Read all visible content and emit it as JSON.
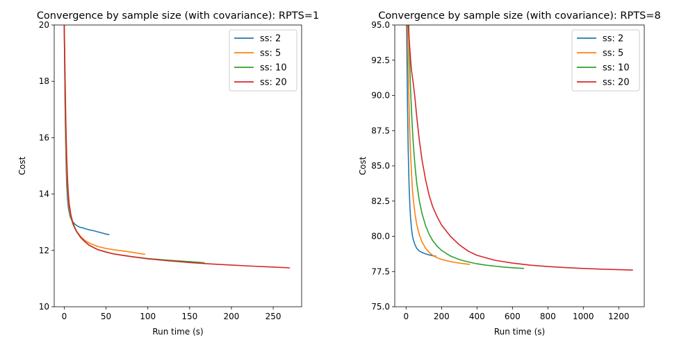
{
  "chart_data": [
    {
      "type": "line",
      "title": "Convergence by sample size (with covariance): RPTS=1",
      "xlabel": "Run time (s)",
      "ylabel": "Cost",
      "xlim": [
        -12,
        284
      ],
      "ylim": [
        10,
        20
      ],
      "xticks": [
        0,
        50,
        100,
        150,
        200,
        250
      ],
      "yticks": [
        10,
        12,
        14,
        16,
        18,
        20
      ],
      "xtick_labels": [
        "0",
        "50",
        "100",
        "150",
        "200",
        "250"
      ],
      "ytick_labels": [
        "10",
        "12",
        "14",
        "16",
        "18",
        "20"
      ],
      "grid": false,
      "legend": "top-right",
      "series": [
        {
          "name": "ss: 2",
          "color": "#1f77b4",
          "x": [
            0.0,
            0.5,
            1.0,
            1.5,
            2.0,
            2.5,
            3.0,
            4.0,
            5.0,
            6.0,
            7.0,
            8.0,
            10.0,
            12.0,
            15.0,
            18.0,
            22.0,
            26.0,
            30.0,
            35.0,
            40.0,
            45.0,
            50.0,
            54.0
          ],
          "y": [
            20.0,
            18.6,
            17.2,
            16.2,
            15.4,
            14.8,
            14.3,
            13.8,
            13.5,
            13.35,
            13.2,
            13.12,
            13.02,
            12.95,
            12.88,
            12.83,
            12.8,
            12.76,
            12.73,
            12.7,
            12.66,
            12.62,
            12.58,
            12.56
          ]
        },
        {
          "name": "ss: 5",
          "color": "#ff7f0e",
          "x": [
            0.0,
            0.5,
            1.0,
            2.0,
            3.0,
            4.0,
            5.0,
            6.0,
            8.0,
            10.0,
            12.0,
            15.0,
            20.0,
            25.0,
            30.0,
            40.0,
            50.0,
            60.0,
            70.0,
            80.0,
            90.0,
            97.0
          ],
          "y": [
            20.0,
            18.8,
            17.4,
            15.6,
            14.7,
            14.1,
            13.7,
            13.45,
            13.15,
            12.95,
            12.82,
            12.66,
            12.48,
            12.35,
            12.26,
            12.14,
            12.07,
            12.02,
            11.98,
            11.94,
            11.89,
            11.86
          ]
        },
        {
          "name": "ss: 10",
          "color": "#2ca02c",
          "x": [
            0.0,
            0.5,
            1.0,
            2.0,
            3.0,
            4.0,
            5.0,
            6.0,
            8.0,
            10.0,
            12.0,
            15.0,
            20.0,
            25.0,
            30.0,
            40.0,
            50.0,
            60.0,
            80.0,
            100.0,
            120.0,
            140.0,
            160.0,
            168.0
          ],
          "y": [
            20.0,
            19.0,
            17.8,
            16.0,
            15.0,
            14.3,
            13.85,
            13.55,
            13.2,
            12.98,
            12.82,
            12.65,
            12.44,
            12.3,
            12.18,
            12.03,
            11.94,
            11.87,
            11.78,
            11.71,
            11.66,
            11.62,
            11.58,
            11.56
          ]
        },
        {
          "name": "ss: 20",
          "color": "#d62728",
          "x": [
            0.0,
            0.5,
            1.0,
            2.0,
            3.0,
            4.0,
            5.0,
            6.0,
            8.0,
            10.0,
            12.0,
            15.0,
            20.0,
            25.0,
            30.0,
            40.0,
            50.0,
            60.0,
            80.0,
            100.0,
            125.0,
            150.0,
            175.0,
            200.0,
            225.0,
            250.0,
            270.0
          ],
          "y": [
            20.0,
            19.2,
            18.2,
            16.5,
            15.3,
            14.5,
            14.0,
            13.65,
            13.25,
            13.02,
            12.85,
            12.67,
            12.45,
            12.3,
            12.18,
            12.03,
            11.94,
            11.87,
            11.78,
            11.7,
            11.63,
            11.57,
            11.52,
            11.48,
            11.44,
            11.41,
            11.38
          ]
        }
      ]
    },
    {
      "type": "line",
      "title": "Convergence by sample size (with covariance): RPTS=8",
      "xlabel": "Run time (s)",
      "ylabel": "Cost",
      "xlim": [
        -64,
        1344
      ],
      "ylim": [
        75,
        95
      ],
      "xticks": [
        0,
        200,
        400,
        600,
        800,
        1000,
        1200
      ],
      "yticks": [
        75.0,
        77.5,
        80.0,
        82.5,
        85.0,
        87.5,
        90.0,
        92.5,
        95.0
      ],
      "xtick_labels": [
        "0",
        "200",
        "400",
        "600",
        "800",
        "1000",
        "1200"
      ],
      "ytick_labels": [
        "75.0",
        "77.5",
        "80.0",
        "82.5",
        "85.0",
        "87.5",
        "90.0",
        "92.5",
        "95.0"
      ],
      "grid": false,
      "legend": "top-right",
      "series": [
        {
          "name": "ss: 2",
          "color": "#1f77b4",
          "x": [
            3.0,
            5.0,
            8.0,
            10.0,
            12.0,
            15.0,
            18.0,
            22.0,
            26.0,
            30.0,
            35.0,
            40.0,
            50.0,
            60.0,
            75.0,
            90.0,
            110.0,
            130.0,
            150.0,
            170.0
          ],
          "y": [
            95.0,
            92.5,
            89.0,
            87.5,
            86.0,
            84.5,
            83.2,
            82.0,
            81.2,
            80.6,
            80.1,
            79.8,
            79.4,
            79.15,
            78.95,
            78.85,
            78.75,
            78.68,
            78.62,
            78.58
          ]
        },
        {
          "name": "ss: 5",
          "color": "#ff7f0e",
          "x": [
            8.0,
            12.0,
            16.0,
            20.0,
            25.0,
            30.0,
            35.0,
            40.0,
            50.0,
            60.0,
            75.0,
            90.0,
            110.0,
            130.0,
            150.0,
            175.0,
            200.0,
            250.0,
            300.0,
            360.0
          ],
          "y": [
            95.0,
            92.0,
            89.6,
            87.7,
            85.9,
            84.6,
            83.5,
            82.7,
            81.6,
            80.85,
            80.1,
            79.6,
            79.15,
            78.85,
            78.65,
            78.48,
            78.36,
            78.2,
            78.1,
            78.0
          ]
        },
        {
          "name": "ss: 10",
          "color": "#2ca02c",
          "x": [
            15.0,
            20.0,
            25.0,
            30.0,
            35.0,
            40.0,
            50.0,
            60.0,
            75.0,
            90.0,
            110.0,
            130.0,
            150.0,
            175.0,
            200.0,
            250.0,
            300.0,
            350.0,
            400.0,
            450.0,
            500.0,
            550.0,
            600.0,
            665.0
          ],
          "y": [
            95.0,
            92.5,
            90.5,
            89.0,
            87.8,
            86.7,
            85.0,
            83.8,
            82.5,
            81.6,
            80.75,
            80.15,
            79.7,
            79.3,
            79.0,
            78.6,
            78.35,
            78.18,
            78.05,
            77.95,
            77.88,
            77.82,
            77.77,
            77.72
          ]
        },
        {
          "name": "ss: 20",
          "color": "#d62728",
          "x": [
            12.0,
            15.0,
            20.0,
            25.0,
            30.0,
            40.0,
            50.0,
            60.0,
            75.0,
            90.0,
            110.0,
            130.0,
            150.0,
            175.0,
            200.0,
            250.0,
            300.0,
            350.0,
            400.0,
            500.0,
            600.0,
            700.0,
            800.0,
            900.0,
            1000.0,
            1100.0,
            1200.0,
            1280.0
          ],
          "y": [
            95.0,
            94.5,
            93.5,
            92.6,
            91.8,
            90.9,
            89.8,
            88.5,
            86.8,
            85.4,
            84.0,
            82.9,
            82.1,
            81.4,
            80.8,
            80.0,
            79.4,
            78.95,
            78.65,
            78.3,
            78.1,
            77.95,
            77.85,
            77.78,
            77.72,
            77.67,
            77.63,
            77.6
          ]
        }
      ]
    }
  ]
}
